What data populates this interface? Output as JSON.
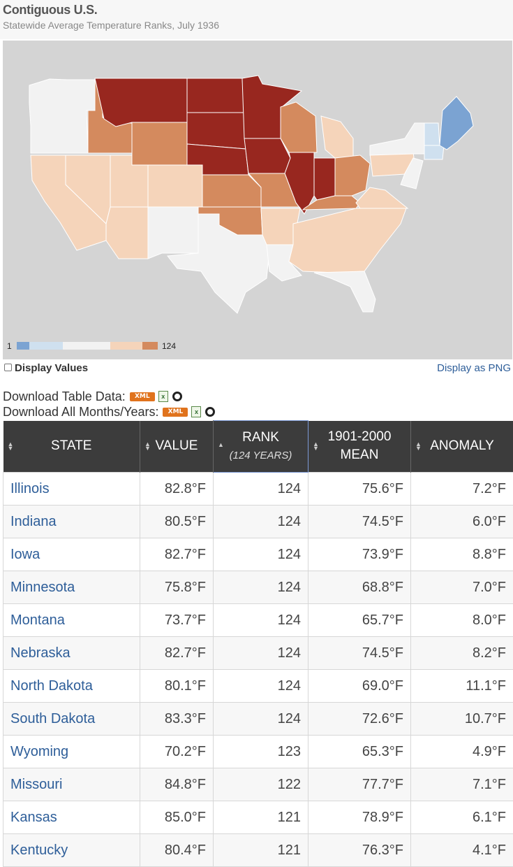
{
  "page": {
    "title": "Contiguous U.S.",
    "subtitle": "Statewide Average Temperature Ranks, July 1936"
  },
  "map": {
    "legend": {
      "min_label": "1",
      "max_label": "124",
      "colors": [
        "#7ba3d2",
        "#cfe0ef",
        "#f2f2f2",
        "#f5d4ba",
        "#d48a5e"
      ]
    },
    "colors": {
      "record_warmest": "#98271f",
      "much_above": "#d48a5e",
      "above": "#f5d4ba",
      "near": "#f2f2f2",
      "below": "#cfe0ef",
      "much_below": "#7ba3d2",
      "background": "#d4d4d4"
    }
  },
  "controls": {
    "display_values_label": "Display Values",
    "display_as_png_label": "Display as PNG"
  },
  "downloads": {
    "table_label": "Download Table Data:",
    "all_label": "Download All Months/Years:",
    "xml_label": "XML"
  },
  "table": {
    "headers": {
      "state": "STATE",
      "value": "VALUE",
      "rank": "RANK",
      "rank_sub": "(124 YEARS)",
      "mean_line1": "1901-2000",
      "mean_line2": "MEAN",
      "anomaly": "ANOMALY"
    },
    "rows": [
      {
        "state": "Illinois",
        "value": "82.8°F",
        "rank": "124",
        "mean": "75.6°F",
        "anomaly": "7.2°F"
      },
      {
        "state": "Indiana",
        "value": "80.5°F",
        "rank": "124",
        "mean": "74.5°F",
        "anomaly": "6.0°F"
      },
      {
        "state": "Iowa",
        "value": "82.7°F",
        "rank": "124",
        "mean": "73.9°F",
        "anomaly": "8.8°F"
      },
      {
        "state": "Minnesota",
        "value": "75.8°F",
        "rank": "124",
        "mean": "68.8°F",
        "anomaly": "7.0°F"
      },
      {
        "state": "Montana",
        "value": "73.7°F",
        "rank": "124",
        "mean": "65.7°F",
        "anomaly": "8.0°F"
      },
      {
        "state": "Nebraska",
        "value": "82.7°F",
        "rank": "124",
        "mean": "74.5°F",
        "anomaly": "8.2°F"
      },
      {
        "state": "North Dakota",
        "value": "80.1°F",
        "rank": "124",
        "mean": "69.0°F",
        "anomaly": "11.1°F"
      },
      {
        "state": "South Dakota",
        "value": "83.3°F",
        "rank": "124",
        "mean": "72.6°F",
        "anomaly": "10.7°F"
      },
      {
        "state": "Wyoming",
        "value": "70.2°F",
        "rank": "123",
        "mean": "65.3°F",
        "anomaly": "4.9°F"
      },
      {
        "state": "Missouri",
        "value": "84.8°F",
        "rank": "122",
        "mean": "77.7°F",
        "anomaly": "7.1°F"
      },
      {
        "state": "Kansas",
        "value": "85.0°F",
        "rank": "121",
        "mean": "78.9°F",
        "anomaly": "6.1°F"
      },
      {
        "state": "Kentucky",
        "value": "80.4°F",
        "rank": "121",
        "mean": "76.3°F",
        "anomaly": "4.1°F"
      }
    ]
  }
}
